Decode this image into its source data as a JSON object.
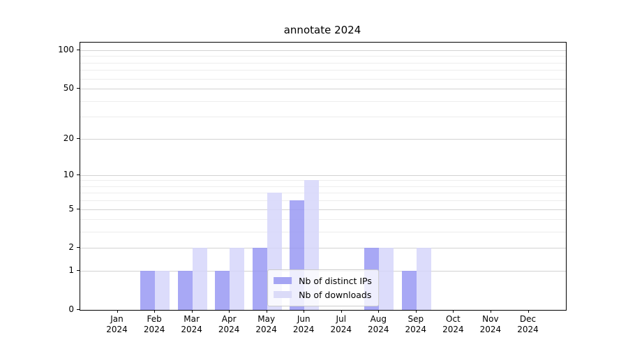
{
  "chart_data": {
    "type": "bar",
    "title": "annotate 2024",
    "categories": [
      "Jan 2024",
      "Feb 2024",
      "Mar 2024",
      "Apr 2024",
      "May 2024",
      "Jun 2024",
      "Jul 2024",
      "Aug 2024",
      "Sep 2024",
      "Oct 2024",
      "Nov 2024",
      "Dec 2024"
    ],
    "series": [
      {
        "name": "Nb of distinct IPs",
        "color": "#a5a5f3",
        "bar_rgba": "rgba(153,153,243,0.85)",
        "values": [
          0,
          1,
          1,
          1,
          2,
          6,
          0,
          2,
          1,
          0,
          0,
          0
        ]
      },
      {
        "name": "Nb of downloads",
        "color": "#dbdbf8",
        "bar_rgba": "rgba(214,214,250,0.85)",
        "values": [
          0,
          1,
          2,
          2,
          7,
          9,
          0,
          2,
          2,
          0,
          0,
          0
        ]
      }
    ],
    "xlabel": "",
    "ylabel": "",
    "yscale": "log1p",
    "ylim": [
      0,
      114.6
    ],
    "yticks": [
      0,
      1,
      2,
      5,
      10,
      20,
      50,
      100
    ],
    "yticks_minor": [
      3,
      4,
      6,
      7,
      8,
      9,
      30,
      40,
      60,
      70,
      80,
      90
    ],
    "grid": true,
    "legend_position": "lower center"
  },
  "legend": {
    "items": [
      {
        "label": "Nb of distinct IPs",
        "color": "#a5a5f3"
      },
      {
        "label": "Nb of downloads",
        "color": "#dbdbf8"
      }
    ]
  }
}
